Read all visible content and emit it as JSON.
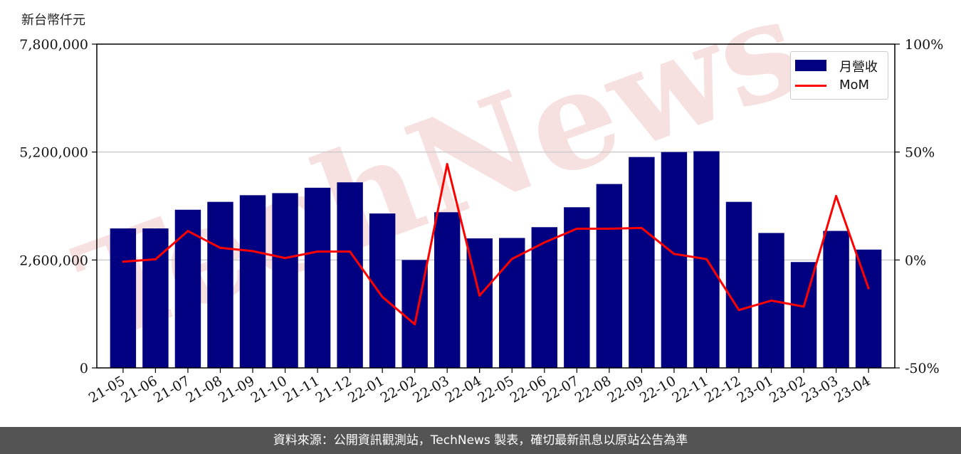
{
  "unit_label": "新台幣仟元",
  "footer_text": "資料來源：公開資訊觀測站，TechNews 製表，確切最新訊息以原站公告為準",
  "watermark_text": "TechNews",
  "colors": {
    "bar": "#000080",
    "line": "#ff0000",
    "grid": "#cccccc",
    "watermark": "#f2c8c8",
    "footer_bg": "#545454"
  },
  "legend": {
    "bar_label": "月營收",
    "line_label": "MoM",
    "placement": "top-right"
  },
  "chart_data": {
    "type": "bar",
    "categories": [
      "21-05",
      "21-06",
      "21-07",
      "21-08",
      "21-09",
      "21-10",
      "21-11",
      "21-12",
      "22-01",
      "22-02",
      "22-03",
      "22-04",
      "22-05",
      "22-06",
      "22-07",
      "22-08",
      "22-09",
      "22-10",
      "22-11",
      "22-12",
      "23-01",
      "23-02",
      "23-03",
      "23-04"
    ],
    "series": [
      {
        "name": "月營收",
        "type": "bar",
        "axis": "left",
        "values": [
          3360000,
          3360000,
          3810000,
          4000000,
          4160000,
          4210000,
          4340000,
          4470000,
          3720000,
          2600000,
          3750000,
          3120000,
          3130000,
          3390000,
          3870000,
          4430000,
          5080000,
          5200000,
          5220000,
          4000000,
          3250000,
          2550000,
          3300000,
          2850000
        ]
      },
      {
        "name": "MoM",
        "type": "line",
        "axis": "right",
        "unit": "%",
        "values": [
          -0.8,
          0.3,
          13.4,
          5.6,
          4.1,
          0.9,
          3.9,
          3.9,
          -17.1,
          -29.8,
          44.4,
          -16.5,
          0.5,
          8.1,
          14.5,
          14.5,
          14.8,
          2.8,
          0.4,
          -23.2,
          -18.8,
          -21.6,
          29.6,
          -13.1
        ]
      }
    ],
    "ylim_left": [
      0,
      7800000
    ],
    "yticks_left": [
      "0",
      "2,600,000",
      "5,200,000",
      "7,800,000"
    ],
    "ylim_right": [
      -50,
      100
    ],
    "yticks_right": [
      "-50%",
      "0%",
      "50%",
      "100%"
    ],
    "grid": "horizontal"
  }
}
